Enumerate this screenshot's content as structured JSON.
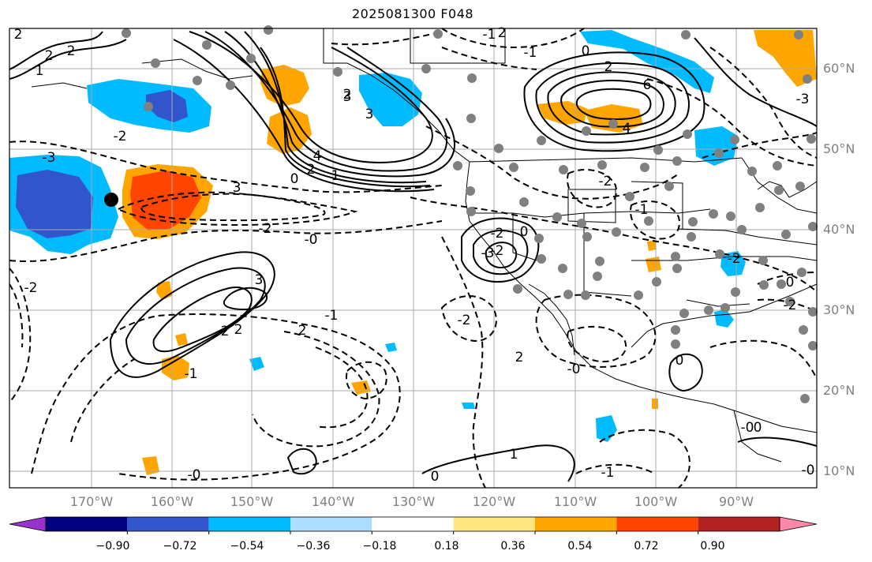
{
  "title": "2025081300 F048",
  "map": {
    "lon_labels": [
      "170°W",
      "160°W",
      "150°W",
      "140°W",
      "130°W",
      "120°W",
      "110°W",
      "100°W",
      "90°W"
    ],
    "lat_labels": [
      "60°N",
      "50°N",
      "40°N",
      "30°N",
      "20°N",
      "10°N"
    ],
    "contour_labels": [
      "2",
      "2",
      "1",
      "3",
      "2",
      "3",
      "4",
      "2",
      "1",
      "0",
      "3",
      "-2",
      "-3",
      "-2",
      "-0",
      "3",
      "2",
      "2",
      "2",
      "-1",
      "2",
      "-2",
      "-0",
      "-1",
      "0",
      "1",
      "0",
      "-2",
      "-2",
      "-2",
      "-3",
      "6",
      "4",
      "2",
      "-3",
      "-0",
      "-2",
      "-1",
      "-2",
      "0",
      "-1",
      "-0",
      "-2",
      "2",
      "0",
      "-1",
      "-1",
      "0",
      "-0",
      "0",
      "2"
    ]
  },
  "colorbar": {
    "tick_labels": [
      "−0.90",
      "−0.72",
      "−0.54",
      "−0.36",
      "−0.18",
      "0.18",
      "0.36",
      "0.54",
      "0.72",
      "0.90"
    ],
    "colors": [
      "#9933cc",
      "#000080",
      "#3355cc",
      "#00bbff",
      "#aaddff",
      "#ffffff",
      "#ffe680",
      "#ffa500",
      "#ff4500",
      "#b22222",
      "#ff88aa"
    ]
  },
  "fill_colors": {
    "neg_strong": "#3355cc",
    "neg_mid": "#00bbff",
    "neg_weak": "#aaddff",
    "pos_weak": "#ffe680",
    "pos_mid": "#ffa500",
    "pos_strong": "#ff4500"
  }
}
